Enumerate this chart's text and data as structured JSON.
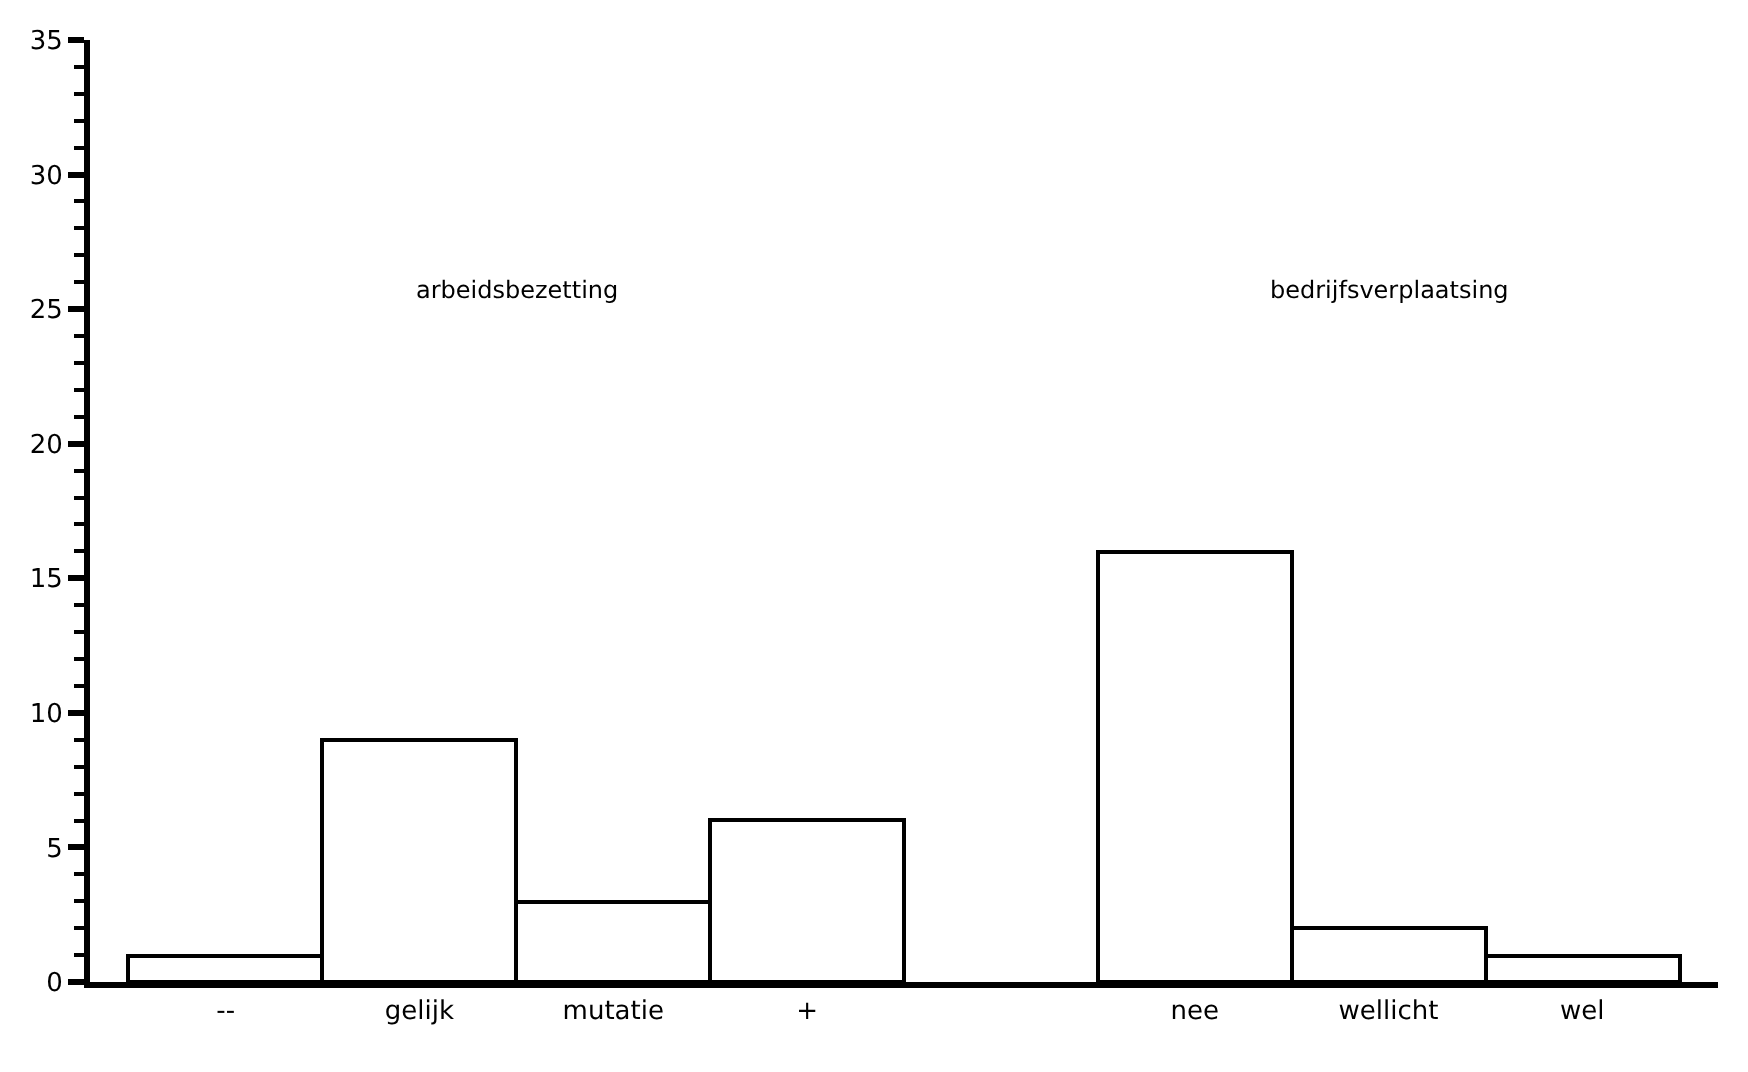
{
  "chart_data": {
    "type": "bar",
    "categories": [
      "--",
      "gelijk",
      "mutatie",
      "+",
      null,
      "nee",
      "wellicht",
      "wel"
    ],
    "values": [
      1,
      9,
      3,
      6,
      null,
      16,
      2,
      1
    ],
    "color": "#ffffff",
    "ylim": [
      0,
      35
    ],
    "yticks": [
      0,
      5,
      10,
      15,
      20,
      25,
      30,
      35
    ],
    "annotations": [
      "arbeidsbezetting",
      "bedrijfsverplaatsing"
    ]
  }
}
